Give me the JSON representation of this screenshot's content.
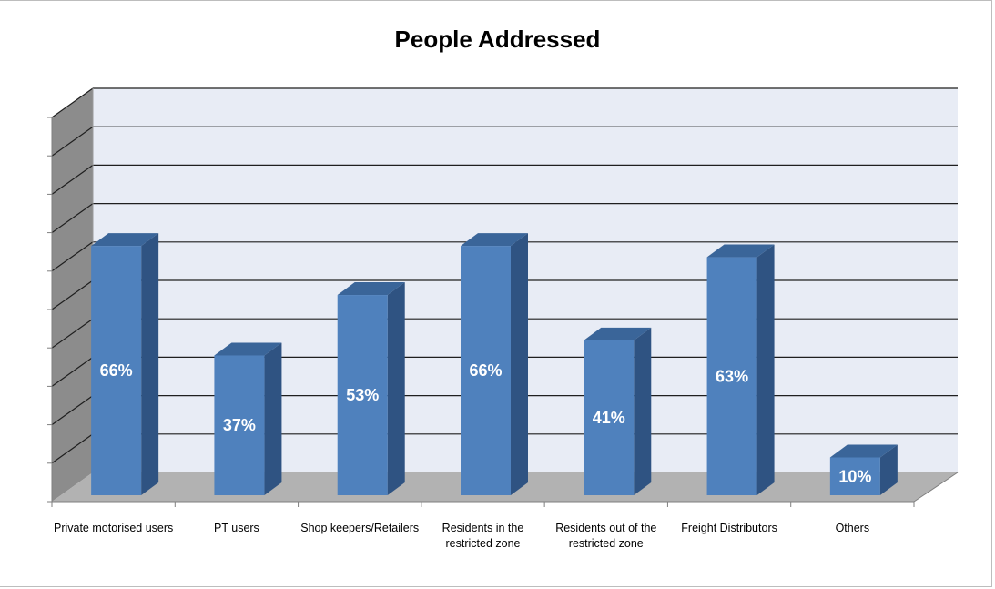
{
  "chart_data": {
    "type": "bar",
    "title": "People Addressed",
    "categories": [
      "Private motorised users",
      "PT users",
      "Shop keepers/Retailers",
      "Residents in the restricted zone",
      "Residents out of the restricted zone",
      "Freight Distributors",
      "Others"
    ],
    "values": [
      66,
      37,
      53,
      66,
      41,
      63,
      10
    ],
    "value_labels": [
      "66%",
      "37%",
      "53%",
      "66%",
      "41%",
      "63%",
      "10%"
    ],
    "ylim": [
      0,
      100
    ],
    "grid": true,
    "three_d": true,
    "colors": {
      "bar_front": "#4f81bd",
      "bar_side": "#2f5382",
      "bar_top": "#3a6599",
      "back_wall": "#e8ecf5",
      "side_wall": "#8c8c8c",
      "floor": "#b2b2b2",
      "gridline": "#1f1f1f"
    }
  }
}
